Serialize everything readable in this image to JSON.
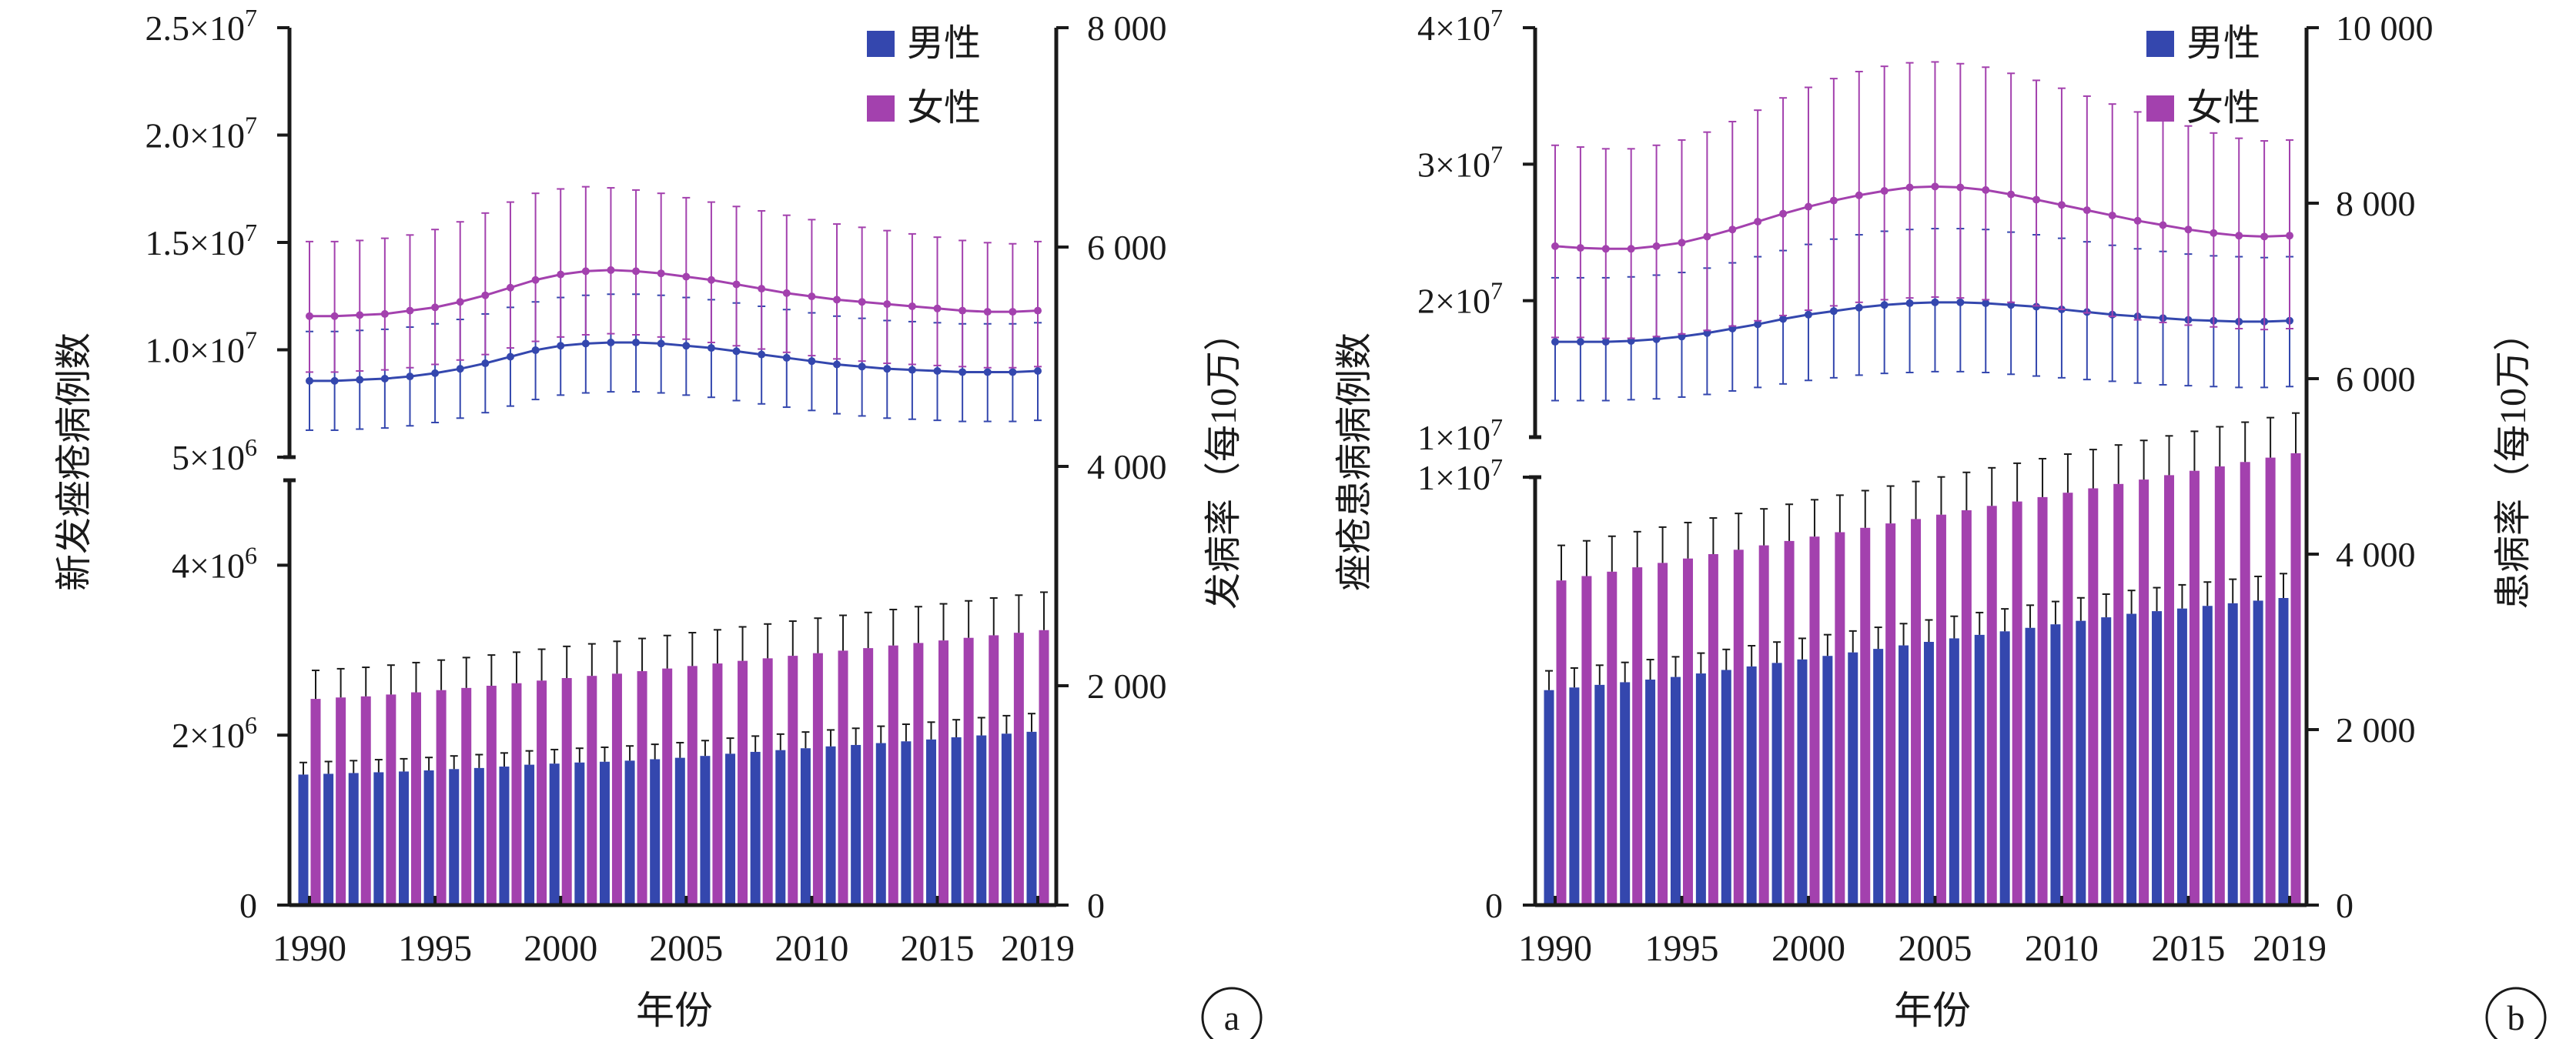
{
  "colors": {
    "male": "#3447AE",
    "female": "#A341AE",
    "axis": "#1a1a1a",
    "errbar": "#1a1a1a"
  },
  "chart_data": [
    {
      "panel": "a",
      "type": "bar+line",
      "xlabel": "年份",
      "ylabel_left": "新发痤疮病例数",
      "ylabel_right": "发病率（每10万）",
      "legend": {
        "position": "top-right",
        "entries": [
          "男性",
          "女性"
        ]
      },
      "x_ticks": [
        "1990",
        "1995",
        "2000",
        "2005",
        "2010",
        "2015",
        "2019"
      ],
      "x": [
        1990,
        1991,
        1992,
        1993,
        1994,
        1995,
        1996,
        1997,
        1998,
        1999,
        2000,
        2001,
        2002,
        2003,
        2004,
        2005,
        2006,
        2007,
        2008,
        2009,
        2010,
        2011,
        2012,
        2013,
        2014,
        2015,
        2016,
        2017,
        2018,
        2019
      ],
      "left_axis_lower": {
        "ylim": [
          0,
          5000000
        ],
        "ticks": [
          0,
          2000000,
          4000000
        ],
        "tick_labels": [
          "0",
          "2×10⁶",
          "4×10⁶"
        ]
      },
      "left_axis_upper": {
        "ylim": [
          5000000,
          25000000
        ],
        "ticks": [
          5000000,
          10000000,
          15000000,
          20000000,
          25000000
        ],
        "tick_labels": [
          "5×10⁶",
          "1.0×10⁷",
          "1.5×10⁷",
          "2.0×10⁷",
          "2.5×10⁷"
        ]
      },
      "right_axis": {
        "ylim": [
          0,
          8000
        ],
        "ticks": [
          0,
          2000,
          4000,
          6000,
          8000
        ],
        "tick_labels": [
          "0",
          "2 000",
          "4 000",
          "6 000",
          "8 000"
        ]
      },
      "bars": [
        {
          "name": "男性",
          "values": [
            1190,
            1197,
            1204,
            1211,
            1218,
            1228,
            1240,
            1250,
            1263,
            1280,
            1290,
            1300,
            1307,
            1317,
            1330,
            1343,
            1360,
            1380,
            1397,
            1413,
            1430,
            1447,
            1460,
            1477,
            1493,
            1510,
            1530,
            1547,
            1563,
            1580
          ],
          "err": [
            110,
            112,
            113,
            115,
            116,
            118,
            120,
            122,
            124,
            126,
            128,
            130,
            132,
            134,
            136,
            138,
            140,
            142,
            144,
            146,
            148,
            150,
            152,
            154,
            156,
            158,
            160,
            162,
            164,
            166
          ]
        },
        {
          "name": "女性",
          "values": [
            1880,
            1893,
            1903,
            1920,
            1940,
            1960,
            1980,
            2000,
            2023,
            2047,
            2070,
            2090,
            2110,
            2133,
            2157,
            2180,
            2203,
            2227,
            2250,
            2273,
            2297,
            2320,
            2343,
            2367,
            2390,
            2413,
            2437,
            2460,
            2483,
            2507
          ],
          "err": [
            260,
            262,
            265,
            268,
            271,
            274,
            277,
            280,
            283,
            286,
            289,
            292,
            295,
            298,
            301,
            304,
            307,
            310,
            313,
            316,
            319,
            322,
            325,
            328,
            331,
            334,
            337,
            340,
            343,
            346
          ]
        }
      ],
      "lines": [
        {
          "name": "男性",
          "values": [
            4780,
            4780,
            4790,
            4800,
            4820,
            4850,
            4890,
            4940,
            5000,
            5060,
            5100,
            5120,
            5130,
            5130,
            5120,
            5100,
            5080,
            5050,
            5020,
            4990,
            4960,
            4930,
            4910,
            4890,
            4880,
            4870,
            4860,
            4860,
            4860,
            4870
          ],
          "upper": [
            5230,
            5230,
            5240,
            5250,
            5270,
            5300,
            5340,
            5390,
            5450,
            5500,
            5540,
            5560,
            5570,
            5570,
            5560,
            5540,
            5520,
            5490,
            5460,
            5430,
            5400,
            5370,
            5350,
            5330,
            5320,
            5310,
            5300,
            5300,
            5300,
            5310
          ],
          "lower": [
            4330,
            4330,
            4340,
            4350,
            4370,
            4400,
            4440,
            4490,
            4550,
            4610,
            4650,
            4670,
            4680,
            4680,
            4670,
            4650,
            4630,
            4600,
            4570,
            4540,
            4510,
            4480,
            4460,
            4440,
            4430,
            4420,
            4410,
            4410,
            4410,
            4420
          ]
        },
        {
          "name": "女性",
          "values": [
            5370,
            5370,
            5380,
            5390,
            5420,
            5450,
            5500,
            5560,
            5630,
            5700,
            5750,
            5780,
            5790,
            5780,
            5760,
            5730,
            5700,
            5660,
            5620,
            5580,
            5550,
            5520,
            5500,
            5480,
            5460,
            5440,
            5420,
            5410,
            5410,
            5420
          ],
          "upper": [
            6050,
            6050,
            6060,
            6080,
            6110,
            6160,
            6230,
            6310,
            6410,
            6490,
            6530,
            6550,
            6540,
            6520,
            6490,
            6450,
            6410,
            6370,
            6330,
            6290,
            6250,
            6210,
            6180,
            6150,
            6120,
            6090,
            6060,
            6040,
            6030,
            6050
          ],
          "lower": [
            4860,
            4860,
            4870,
            4880,
            4900,
            4930,
            4970,
            5020,
            5080,
            5140,
            5180,
            5200,
            5210,
            5200,
            5180,
            5160,
            5130,
            5100,
            5070,
            5040,
            5010,
            4980,
            4960,
            4940,
            4930,
            4920,
            4910,
            4900,
            4900,
            4910
          ]
        }
      ],
      "panel_label": "a"
    },
    {
      "panel": "b",
      "type": "bar+line",
      "xlabel": "年份",
      "ylabel_left": "痤疮患病病例数",
      "ylabel_right": "患病率（每10万）",
      "legend": {
        "position": "top-right",
        "entries": [
          "男性",
          "女性"
        ]
      },
      "x_ticks": [
        "1990",
        "1995",
        "2000",
        "2005",
        "2010",
        "2015",
        "2019"
      ],
      "x": [
        1990,
        1991,
        1992,
        1993,
        1994,
        1995,
        1996,
        1997,
        1998,
        1999,
        2000,
        2001,
        2002,
        2003,
        2004,
        2005,
        2006,
        2007,
        2008,
        2009,
        2010,
        2011,
        2012,
        2013,
        2014,
        2015,
        2016,
        2017,
        2018,
        2019
      ],
      "left_axis_lower": {
        "ylim": [
          0,
          10000000
        ],
        "ticks": [
          0,
          10000000
        ],
        "tick_labels": [
          "0",
          "1×10⁷"
        ]
      },
      "left_axis_upper": {
        "ylim": [
          10000000,
          40000000
        ],
        "ticks": [
          10000000,
          20000000,
          30000000,
          40000000
        ],
        "tick_labels": [
          "1×10⁷",
          "2×10⁷",
          "3×10⁷",
          "4×10⁷"
        ]
      },
      "right_axis": {
        "ylim": [
          0,
          10000
        ],
        "ticks": [
          0,
          2000,
          4000,
          6000,
          8000,
          10000
        ],
        "tick_labels": [
          "0",
          "2 000",
          "4 000",
          "6 000",
          "8 000",
          "10 000"
        ]
      },
      "bars": [
        {
          "name": "男性",
          "values": [
            2450,
            2480,
            2510,
            2540,
            2570,
            2600,
            2640,
            2680,
            2720,
            2760,
            2800,
            2840,
            2880,
            2920,
            2960,
            3000,
            3040,
            3080,
            3120,
            3160,
            3200,
            3240,
            3280,
            3320,
            3350,
            3380,
            3410,
            3440,
            3470,
            3500
          ],
          "err": [
            220,
            222,
            224,
            226,
            228,
            230,
            232,
            234,
            236,
            238,
            240,
            242,
            244,
            246,
            248,
            250,
            252,
            254,
            256,
            258,
            260,
            262,
            264,
            266,
            268,
            270,
            272,
            274,
            276,
            278
          ]
        },
        {
          "name": "女性",
          "values": [
            3700,
            3750,
            3800,
            3850,
            3900,
            3950,
            4000,
            4050,
            4100,
            4150,
            4200,
            4250,
            4300,
            4350,
            4400,
            4450,
            4500,
            4550,
            4600,
            4650,
            4700,
            4750,
            4800,
            4850,
            4900,
            4950,
            5000,
            5050,
            5100,
            5150
          ],
          "err": [
            400,
            402,
            404,
            406,
            408,
            410,
            412,
            414,
            416,
            418,
            420,
            422,
            424,
            426,
            428,
            430,
            432,
            434,
            436,
            438,
            440,
            442,
            444,
            446,
            448,
            450,
            452,
            454,
            456,
            458
          ]
        }
      ],
      "lines": [
        {
          "name": "男性",
          "values": [
            6420,
            6420,
            6420,
            6430,
            6450,
            6480,
            6520,
            6570,
            6620,
            6680,
            6730,
            6770,
            6810,
            6840,
            6860,
            6870,
            6870,
            6860,
            6840,
            6820,
            6790,
            6760,
            6730,
            6710,
            6690,
            6670,
            6660,
            6650,
            6650,
            6660
          ],
          "upper": [
            7150,
            7150,
            7150,
            7160,
            7180,
            7210,
            7260,
            7320,
            7390,
            7460,
            7530,
            7590,
            7640,
            7680,
            7700,
            7710,
            7710,
            7700,
            7670,
            7640,
            7600,
            7560,
            7520,
            7480,
            7450,
            7420,
            7400,
            7390,
            7380,
            7390
          ],
          "lower": [
            5750,
            5750,
            5750,
            5760,
            5770,
            5790,
            5820,
            5860,
            5900,
            5940,
            5980,
            6010,
            6040,
            6060,
            6070,
            6080,
            6080,
            6070,
            6050,
            6030,
            6010,
            5990,
            5970,
            5950,
            5930,
            5920,
            5910,
            5900,
            5900,
            5910
          ]
        },
        {
          "name": "女性",
          "values": [
            7510,
            7490,
            7480,
            7480,
            7510,
            7550,
            7620,
            7700,
            7790,
            7880,
            7960,
            8030,
            8090,
            8140,
            8180,
            8190,
            8180,
            8150,
            8100,
            8040,
            7980,
            7920,
            7860,
            7800,
            7750,
            7700,
            7660,
            7630,
            7620,
            7630
          ],
          "upper": [
            8660,
            8640,
            8620,
            8620,
            8660,
            8720,
            8810,
            8930,
            9060,
            9200,
            9320,
            9420,
            9500,
            9560,
            9600,
            9610,
            9590,
            9550,
            9480,
            9400,
            9310,
            9220,
            9130,
            9040,
            8960,
            8880,
            8800,
            8740,
            8710,
            8720
          ],
          "lower": [
            6470,
            6470,
            6460,
            6460,
            6480,
            6510,
            6550,
            6600,
            6660,
            6720,
            6780,
            6830,
            6870,
            6900,
            6920,
            6930,
            6920,
            6900,
            6870,
            6830,
            6790,
            6750,
            6710,
            6670,
            6640,
            6610,
            6590,
            6570,
            6560,
            6570
          ]
        }
      ],
      "panel_label": "b"
    }
  ]
}
